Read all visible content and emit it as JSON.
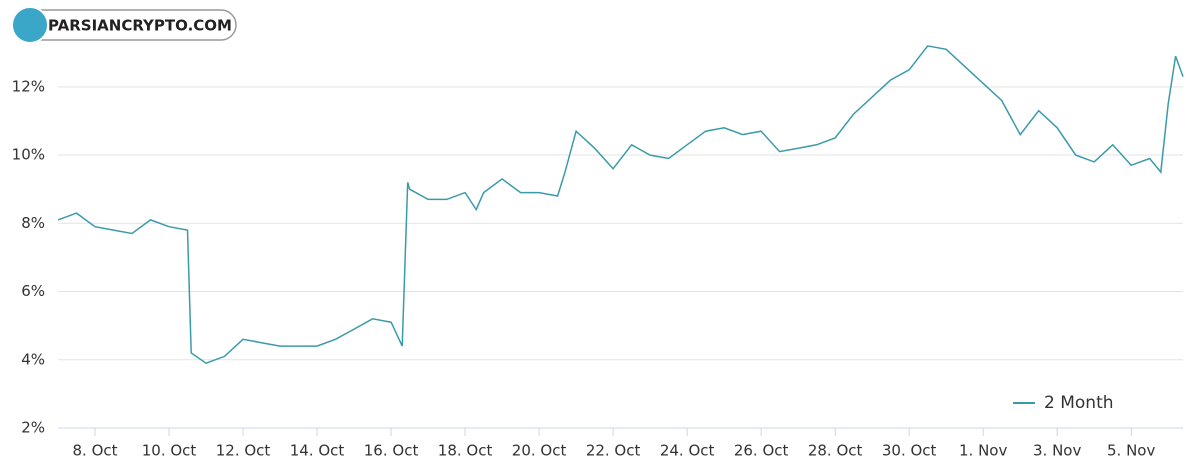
{
  "watermark": "PARSIANCRYPTO.COM",
  "chart_data": {
    "type": "line",
    "x": [
      7,
      7.5,
      8,
      8.5,
      9,
      9.5,
      10,
      10.5,
      10.6,
      11,
      11.5,
      12,
      12.5,
      13,
      13.5,
      14,
      14.5,
      15,
      15.5,
      16,
      16.3,
      16.45,
      16.5,
      17,
      17.5,
      18,
      18.3,
      18.5,
      19,
      19.5,
      20,
      20.5,
      20.7,
      21,
      21.5,
      22,
      22.5,
      23,
      23.5,
      24,
      24.5,
      25,
      25.5,
      26,
      26.5,
      27,
      27.5,
      28,
      28.5,
      29,
      29.5,
      30,
      30.5,
      31,
      31.5,
      32,
      32.5,
      33,
      33.5,
      34,
      34.5,
      35,
      35.5,
      36,
      36.5,
      36.8,
      37,
      37.2,
      37.4
    ],
    "series": [
      {
        "name": "2 Month",
        "color": "#3a9ba8",
        "values": [
          8.1,
          8.3,
          7.9,
          7.8,
          7.7,
          8.1,
          7.9,
          7.8,
          4.2,
          3.9,
          4.1,
          4.6,
          4.5,
          4.4,
          4.4,
          4.4,
          4.6,
          4.9,
          5.2,
          5.1,
          4.4,
          9.2,
          9.0,
          8.7,
          8.7,
          8.9,
          8.4,
          8.9,
          9.3,
          8.9,
          8.9,
          8.8,
          9.5,
          10.7,
          10.2,
          9.6,
          10.3,
          10.0,
          9.9,
          10.3,
          10.7,
          10.8,
          10.6,
          10.7,
          10.1,
          10.2,
          10.3,
          10.5,
          11.2,
          11.7,
          12.2,
          12.5,
          13.2,
          13.1,
          12.6,
          12.1,
          11.6,
          10.6,
          11.3,
          10.8,
          10.0,
          9.8,
          10.3,
          9.7,
          9.9,
          9.5,
          11.5,
          12.9,
          12.3
        ]
      }
    ],
    "xlim": [
      7,
      37.4
    ],
    "xticks": [
      {
        "value": 8,
        "label": "8. Oct"
      },
      {
        "value": 10,
        "label": "10. Oct"
      },
      {
        "value": 12,
        "label": "12. Oct"
      },
      {
        "value": 14,
        "label": "14. Oct"
      },
      {
        "value": 16,
        "label": "16. Oct"
      },
      {
        "value": 18,
        "label": "18. Oct"
      },
      {
        "value": 20,
        "label": "20. Oct"
      },
      {
        "value": 22,
        "label": "22. Oct"
      },
      {
        "value": 24,
        "label": "24. Oct"
      },
      {
        "value": 26,
        "label": "26. Oct"
      },
      {
        "value": 28,
        "label": "28. Oct"
      },
      {
        "value": 30,
        "label": "30. Oct"
      },
      {
        "value": 32,
        "label": "1. Nov"
      },
      {
        "value": 34,
        "label": "3. Nov"
      },
      {
        "value": 36,
        "label": "5. Nov"
      }
    ],
    "ylim": [
      2,
      13.9
    ],
    "yticks": [
      {
        "value": 2,
        "label": "2%"
      },
      {
        "value": 4,
        "label": "4%"
      },
      {
        "value": 6,
        "label": "6%"
      },
      {
        "value": 8,
        "label": "8%"
      },
      {
        "value": 10,
        "label": "10%"
      },
      {
        "value": 12,
        "label": "12%"
      }
    ],
    "grid": true,
    "legend": "lower right"
  }
}
